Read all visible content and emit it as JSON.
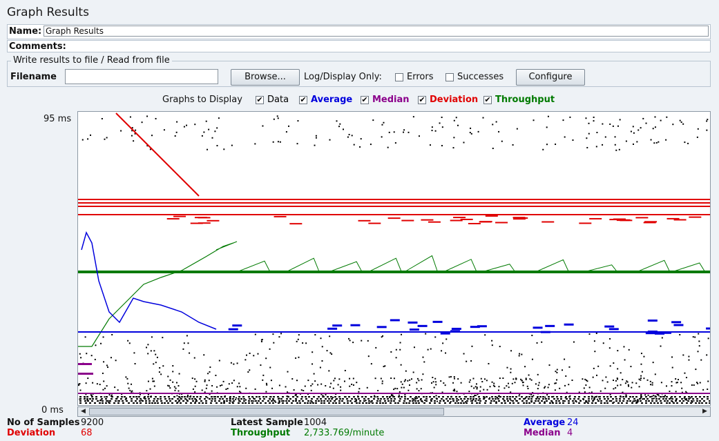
{
  "title": "Graph Results",
  "name_label": "Name:",
  "name_value": "Graph Results",
  "comments_label": "Comments:",
  "file_section_legend": "Write results to file / Read from file",
  "filename_label": "Filename",
  "filename_value": "",
  "browse_label": "Browse...",
  "log_display_label": "Log/Display Only:",
  "errors_label": "Errors",
  "successes_label": "Successes",
  "configure_label": "Configure",
  "graphs_to_display_label": "Graphs to Display",
  "toggles": [
    {
      "label": "Data",
      "checked": true,
      "color": "#000000"
    },
    {
      "label": "Average",
      "checked": true,
      "color": "#0000dd"
    },
    {
      "label": "Median",
      "checked": true,
      "color": "#8b008b"
    },
    {
      "label": "Deviation",
      "checked": true,
      "color": "#e00000"
    },
    {
      "label": "Throughput",
      "checked": true,
      "color": "#007a00"
    }
  ],
  "y_axis": {
    "max_label": "95 ms",
    "min_label": "0 ms"
  },
  "colors": {
    "data": "#000000",
    "average": "#0000dd",
    "median": "#8b008b",
    "deviation": "#e00000",
    "throughput": "#007a00"
  },
  "stats": {
    "samples_label": "No of Samples",
    "samples_value": "9200",
    "deviation_label": "Deviation",
    "deviation_value": "68",
    "latest_label": "Latest Sample",
    "latest_value": "1004",
    "throughput_label": "Throughput",
    "throughput_value": "2,733.769/minute",
    "average_label": "Average",
    "average_value": "24",
    "median_label": "Median",
    "median_value": "4"
  },
  "scrollbar": {
    "left_arrow": "◀",
    "right_arrow": "▶"
  }
}
